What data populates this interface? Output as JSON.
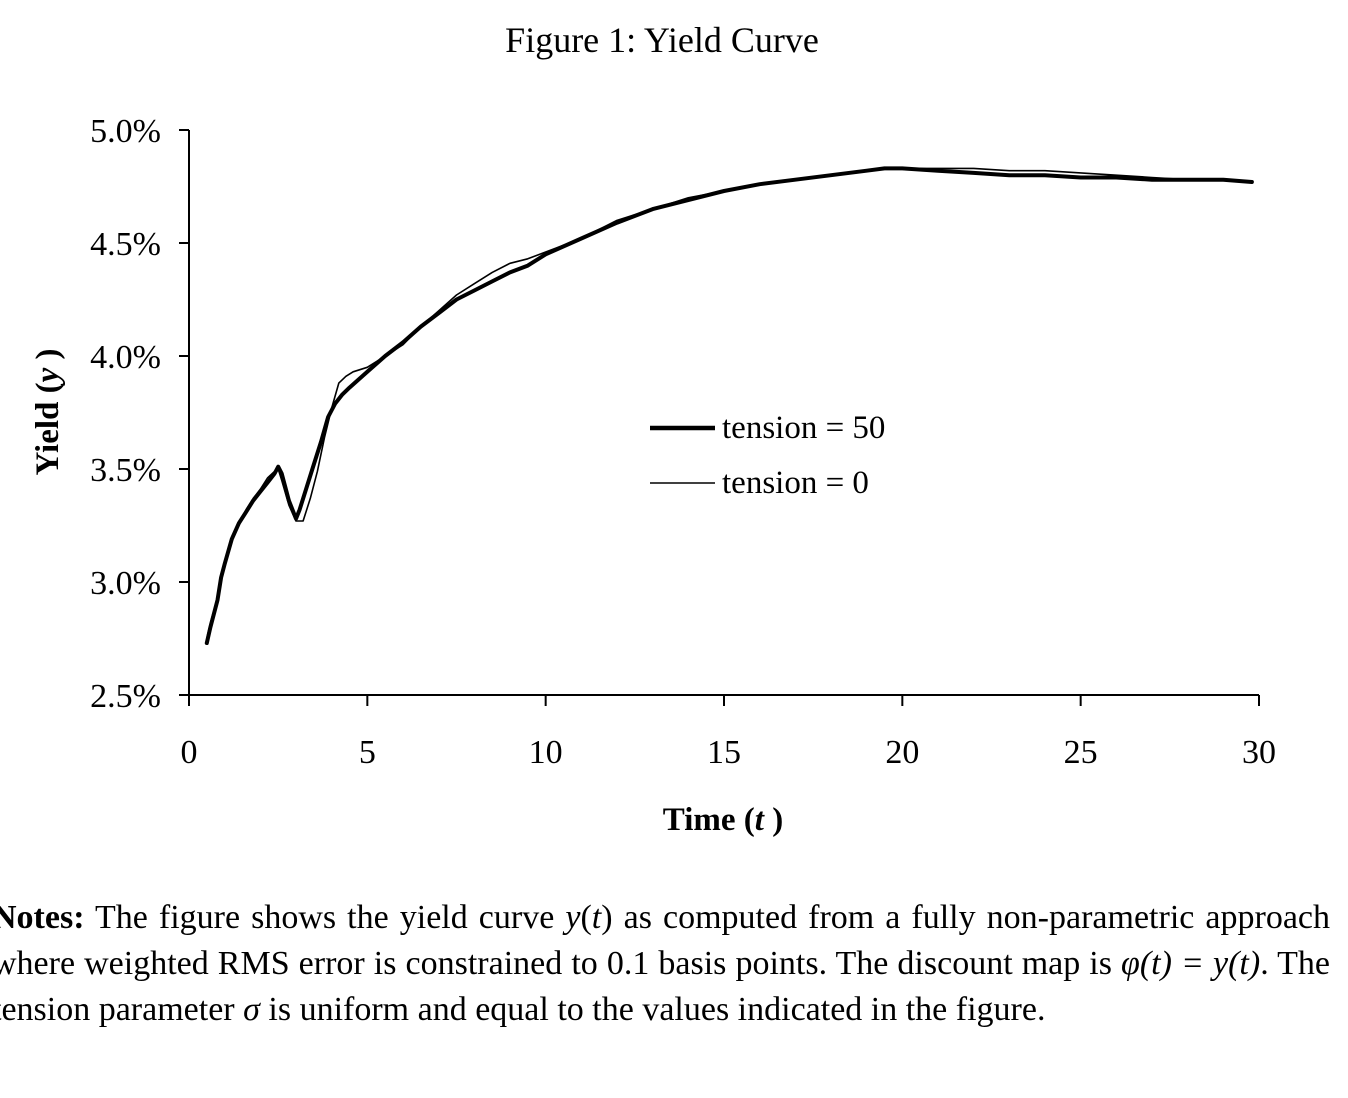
{
  "chart_data": {
    "type": "line",
    "title": "Figure 1: Yield Curve",
    "xlabel": "Time",
    "xlabel_var": "t",
    "ylabel": "Yield",
    "ylabel_var": "y",
    "xlim": [
      0,
      30
    ],
    "ylim": [
      0.025,
      0.05
    ],
    "xticks": [
      0,
      5,
      10,
      15,
      20,
      25,
      30
    ],
    "xtick_labels": [
      "0",
      "5",
      "10",
      "15",
      "20",
      "25",
      "30"
    ],
    "yticks": [
      0.025,
      0.03,
      0.035,
      0.04,
      0.045,
      0.05
    ],
    "ytick_labels": [
      "2.5%",
      "3.0%",
      "3.5%",
      "4.0%",
      "4.5%",
      "5.0%"
    ],
    "legend": [
      "tension = 50",
      "tension = 0"
    ],
    "legend_position": "center",
    "series": [
      {
        "name": "tension = 50",
        "line_weight": "thick",
        "x": [
          0.5,
          0.6,
          0.8,
          0.9,
          1.0,
          1.2,
          1.4,
          1.6,
          1.8,
          2.0,
          2.2,
          2.4,
          2.5,
          2.6,
          2.8,
          3.0,
          3.1,
          3.3,
          3.5,
          3.7,
          3.9,
          4.1,
          4.3,
          4.5,
          5.0,
          5.5,
          6.0,
          6.5,
          7.0,
          7.5,
          8.0,
          8.5,
          9.0,
          9.5,
          10.0,
          11.0,
          12.0,
          13.0,
          14.0,
          15.0,
          16.0,
          17.0,
          18.0,
          19.0,
          19.5,
          20.0,
          21.0,
          22.0,
          23.0,
          24.0,
          25.0,
          26.0,
          27.0,
          28.0,
          29.0,
          29.8
        ],
        "y": [
          0.0273,
          0.028,
          0.0292,
          0.0302,
          0.0308,
          0.0319,
          0.0326,
          0.0331,
          0.0336,
          0.034,
          0.0344,
          0.0348,
          0.0351,
          0.0348,
          0.0336,
          0.0328,
          0.0332,
          0.0342,
          0.0352,
          0.0362,
          0.0373,
          0.0379,
          0.0383,
          0.0386,
          0.0393,
          0.04,
          0.0406,
          0.0413,
          0.0419,
          0.0425,
          0.0429,
          0.0433,
          0.0437,
          0.044,
          0.0445,
          0.0452,
          0.0459,
          0.0465,
          0.0469,
          0.0473,
          0.0476,
          0.0478,
          0.048,
          0.0482,
          0.0483,
          0.0483,
          0.0482,
          0.0481,
          0.048,
          0.048,
          0.0479,
          0.0479,
          0.0478,
          0.0478,
          0.0478,
          0.0477
        ]
      },
      {
        "name": "tension = 0",
        "line_weight": "thin",
        "x": [
          0.5,
          0.6,
          0.8,
          0.9,
          1.0,
          1.2,
          1.4,
          1.6,
          1.8,
          2.0,
          2.2,
          2.4,
          2.5,
          2.6,
          2.8,
          3.0,
          3.2,
          3.4,
          3.6,
          3.8,
          4.0,
          4.2,
          4.4,
          4.6,
          5.0,
          5.5,
          6.0,
          6.5,
          7.0,
          7.5,
          8.0,
          8.5,
          9.0,
          9.5,
          10.0,
          11.0,
          12.0,
          13.0,
          14.0,
          15.0,
          16.0,
          17.0,
          18.0,
          19.0,
          19.5,
          20.0,
          21.0,
          22.0,
          23.0,
          24.0,
          25.0,
          26.0,
          27.0,
          28.0,
          29.0,
          29.8
        ],
        "y": [
          0.0275,
          0.0282,
          0.0293,
          0.0302,
          0.0309,
          0.032,
          0.0326,
          0.0332,
          0.0337,
          0.0341,
          0.0346,
          0.0349,
          0.035,
          0.0345,
          0.0334,
          0.0327,
          0.0327,
          0.0337,
          0.0349,
          0.0364,
          0.0377,
          0.0388,
          0.0391,
          0.0393,
          0.0395,
          0.04,
          0.0405,
          0.0413,
          0.042,
          0.0427,
          0.0432,
          0.0437,
          0.0441,
          0.0443,
          0.0446,
          0.0452,
          0.046,
          0.0465,
          0.047,
          0.0473,
          0.0476,
          0.0478,
          0.048,
          0.0482,
          0.0483,
          0.0483,
          0.0483,
          0.0483,
          0.0482,
          0.0482,
          0.0481,
          0.048,
          0.0479,
          0.0478,
          0.0478,
          0.0477
        ]
      }
    ]
  },
  "notes": {
    "label": "Notes:",
    "s1": " The figure shows the yield curve ",
    "m1": "y",
    "m1_paren_open": "(",
    "m1_var": "t",
    "m1_paren_close": ")",
    "s2": " as computed from a fully non-parametric approach where weighted RMS error is constrained to 0.1 basis points. The discount map is ",
    "m2": "φ",
    "m2_arg": "(t) = y(t)",
    "s3": ". The tension parameter ",
    "m3": "σ",
    "s4": " is uniform and equal to the values indicated in the figure."
  },
  "colors": {
    "ink": "#000000",
    "background": "#ffffff"
  }
}
